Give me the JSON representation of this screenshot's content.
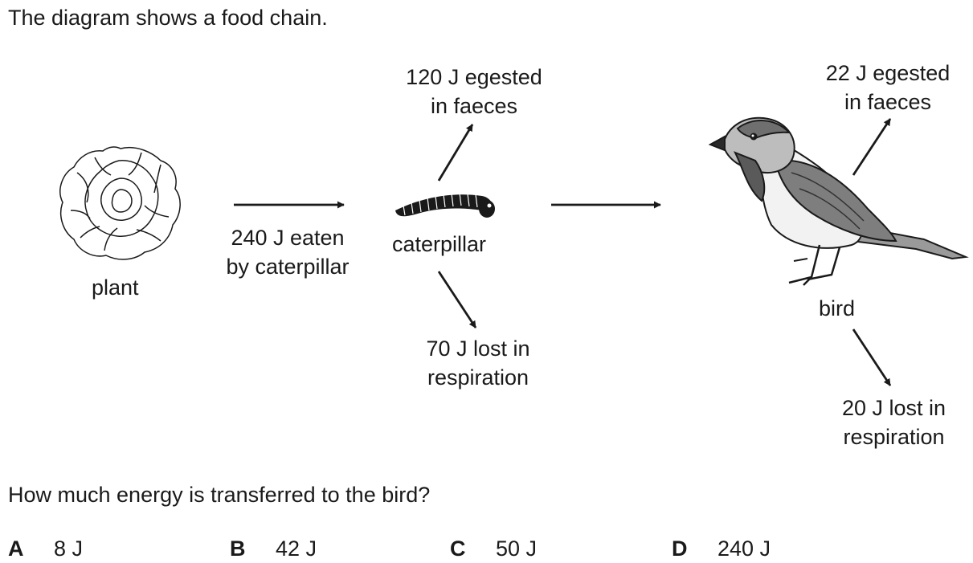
{
  "intro": "The diagram shows a food chain.",
  "organisms": {
    "plant": "plant",
    "caterpillar": "caterpillar",
    "bird": "bird"
  },
  "labels": {
    "eaten_line1": "240 J eaten",
    "eaten_line2": "by caterpillar",
    "cat_egested_line1": "120 J egested",
    "cat_egested_line2": "in faeces",
    "cat_resp_line1": "70 J lost in",
    "cat_resp_line2": "respiration",
    "bird_egested_line1": "22 J egested",
    "bird_egested_line2": "in faeces",
    "bird_resp_line1": "20 J lost in",
    "bird_resp_line2": "respiration"
  },
  "question": "How much energy is transferred to the bird?",
  "options": [
    {
      "letter": "A",
      "value": "8 J"
    },
    {
      "letter": "B",
      "value": "42 J"
    },
    {
      "letter": "C",
      "value": "50 J"
    },
    {
      "letter": "D",
      "value": "240 J"
    }
  ]
}
